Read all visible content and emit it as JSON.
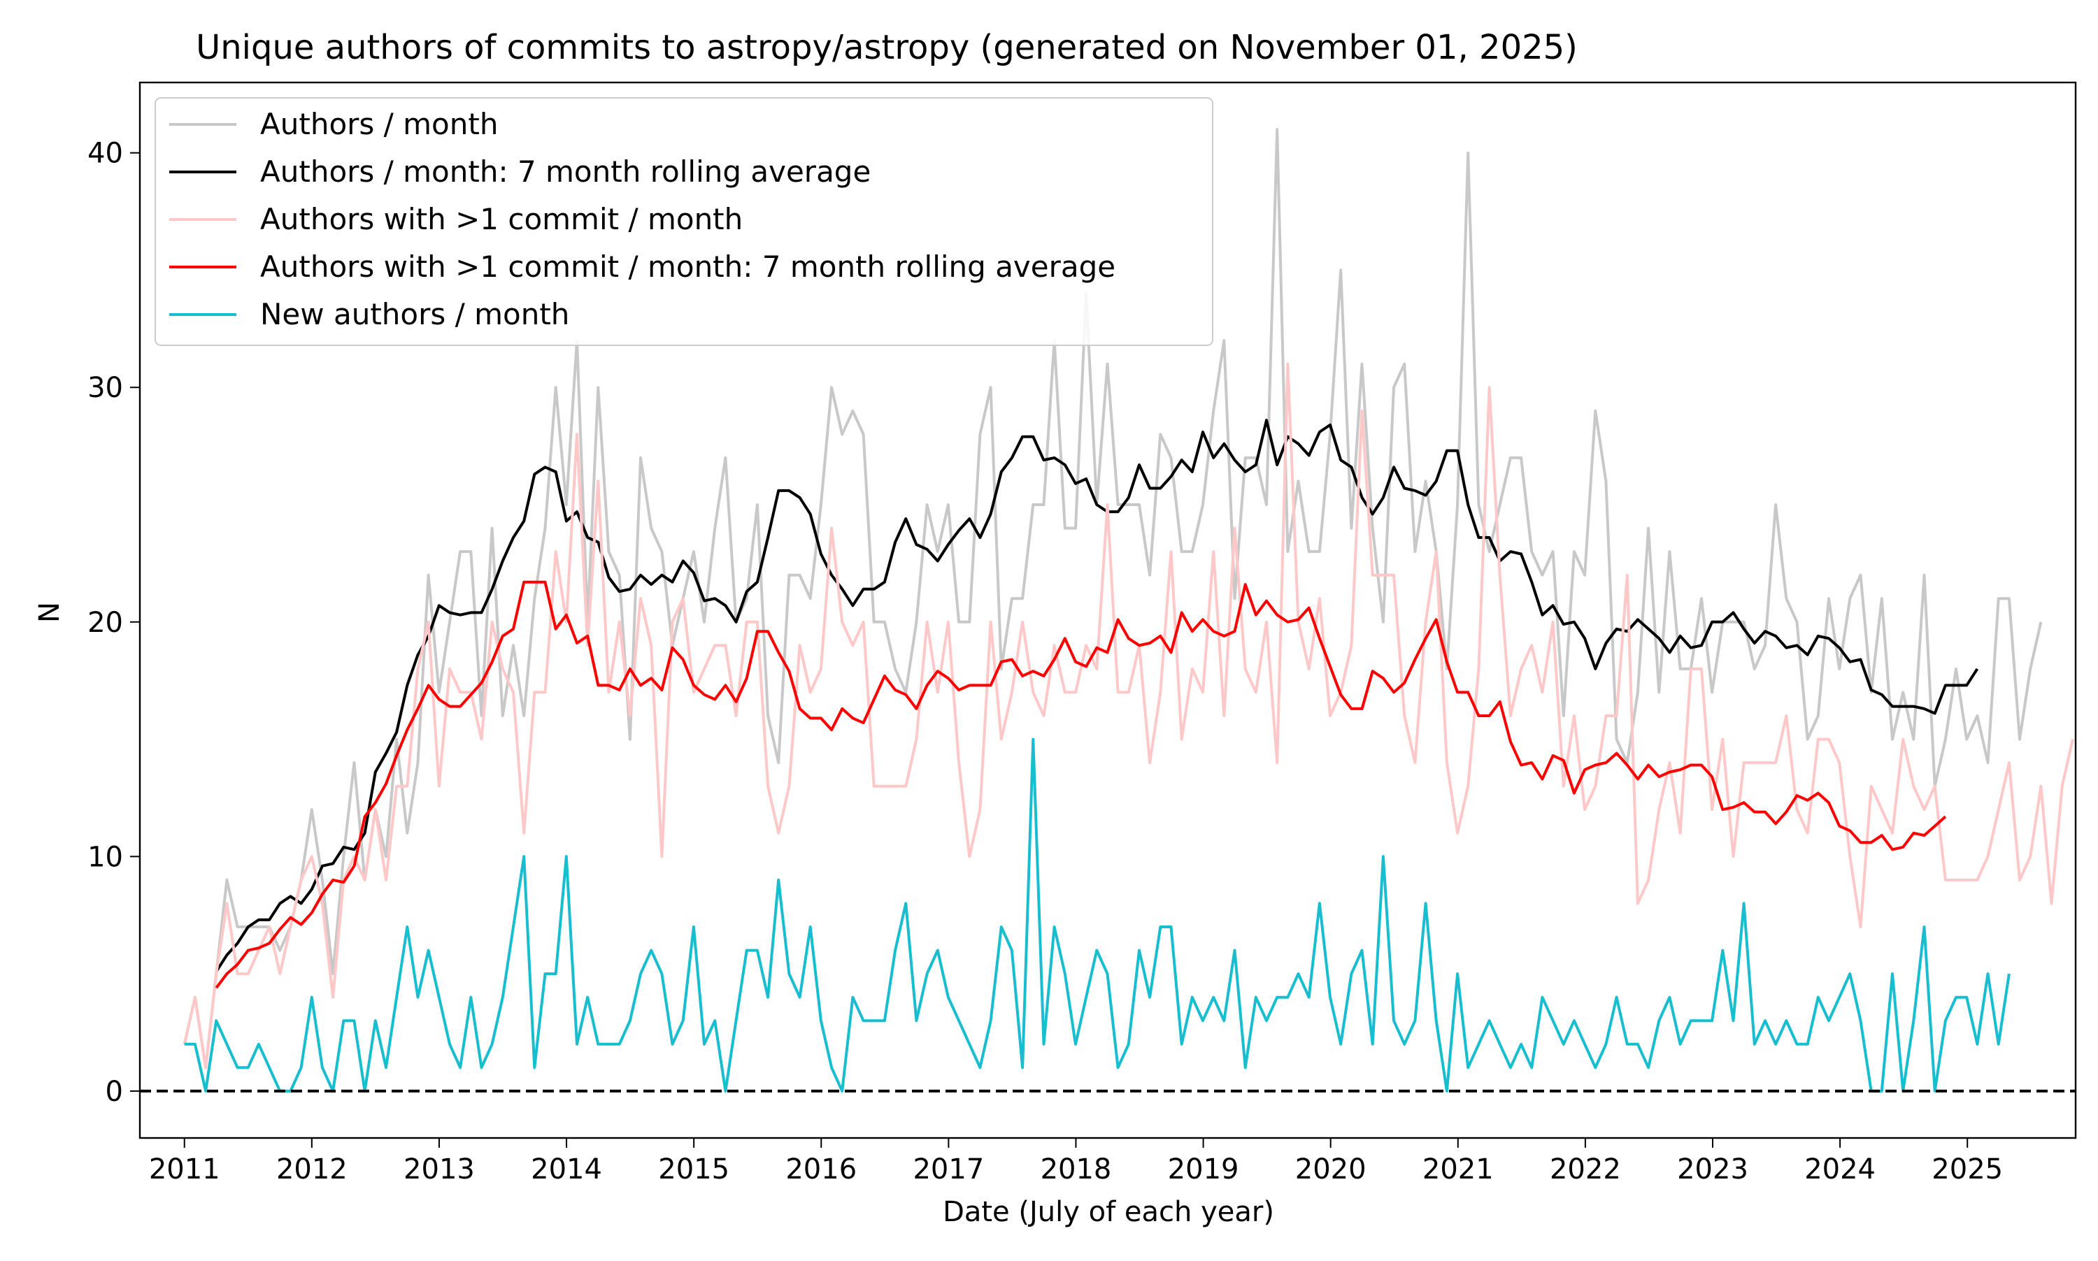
{
  "chart_data": {
    "type": "line",
    "title": "Unique authors of commits to astropy/astropy (generated on November 01, 2025)",
    "xlabel": "Date (July of each year)",
    "ylabel": "N",
    "xlim": [
      2010.65,
      2025.85
    ],
    "ylim": [
      -2,
      43
    ],
    "x_tick_labels": [
      "2011",
      "2012",
      "2013",
      "2014",
      "2015",
      "2016",
      "2017",
      "2018",
      "2019",
      "2020",
      "2021",
      "2022",
      "2023",
      "2024",
      "2025"
    ],
    "y_tick_labels": [
      "0",
      "10",
      "20",
      "30",
      "40"
    ],
    "legend_position": "top-left",
    "grid": false,
    "reference_line": {
      "y": 0,
      "style": "dashed",
      "color": "#000000"
    },
    "series": [
      {
        "name": "Authors / month",
        "color": "#c8c8c8",
        "x_start": 2011.0,
        "x_step": 0.0833,
        "values": [
          2,
          4,
          1,
          5,
          9,
          7,
          7,
          7,
          7,
          6,
          7,
          9,
          12,
          9,
          5,
          10,
          14,
          9,
          12,
          10,
          15,
          11,
          14,
          22,
          17,
          20,
          23,
          23,
          16,
          24,
          16,
          19,
          16,
          21,
          24,
          30,
          25,
          32,
          20,
          30,
          23,
          22,
          15,
          27,
          24,
          23,
          19,
          21,
          23,
          20,
          24,
          27,
          20,
          21,
          25,
          16,
          14,
          22,
          22,
          21,
          25,
          30,
          28,
          29,
          28,
          20,
          20,
          18,
          17,
          20,
          25,
          23,
          25,
          20,
          20,
          28,
          30,
          18,
          21,
          21,
          25,
          25,
          32,
          24,
          24,
          34,
          25,
          31,
          25,
          25,
          25,
          22,
          28,
          27,
          23,
          23,
          25,
          29,
          32,
          21,
          27,
          27,
          25,
          41,
          23,
          26,
          23,
          23,
          28,
          35,
          24,
          31,
          24,
          20,
          30,
          31,
          23,
          26,
          23,
          18,
          25,
          40,
          25,
          23,
          25,
          27,
          27,
          23,
          22,
          23,
          16,
          23,
          22,
          29,
          26,
          15,
          14,
          17,
          24,
          17,
          23,
          18,
          18,
          21,
          17,
          20,
          20,
          20,
          18,
          19,
          25,
          21,
          20,
          15,
          16,
          21,
          18,
          21,
          22,
          17,
          21,
          15,
          17,
          15,
          22,
          13,
          15,
          18,
          15,
          16,
          14,
          21,
          21,
          15,
          18,
          20
        ]
      },
      {
        "name": "Authors / month: 7 month rolling average",
        "color": "#000000",
        "x_start": 2011.25,
        "x_step": 0.0833,
        "values": [
          5.1,
          5.8,
          6.3,
          7.0,
          7.3,
          7.3,
          8.0,
          8.3,
          8.0,
          8.6,
          9.6,
          9.7,
          10.4,
          10.3,
          11.0,
          13.6,
          14.4,
          15.3,
          17.3,
          18.6,
          19.4,
          20.7,
          20.4,
          20.3,
          20.4,
          20.4,
          21.4,
          22.6,
          23.6,
          24.3,
          26.3,
          26.6,
          26.4,
          24.3,
          24.7,
          23.6,
          23.4,
          21.9,
          21.3,
          21.4,
          22.0,
          21.6,
          22.0,
          21.7,
          22.6,
          22.1,
          20.9,
          21.0,
          20.7,
          20.0,
          21.3,
          21.7,
          23.6,
          25.6,
          25.6,
          25.3,
          24.6,
          22.9,
          22.0,
          21.4,
          20.7,
          21.4,
          21.4,
          21.7,
          23.4,
          24.4,
          23.3,
          23.1,
          22.6,
          23.3,
          23.9,
          24.4,
          23.6,
          24.6,
          26.4,
          27.0,
          27.9,
          27.9,
          26.9,
          27.0,
          26.7,
          25.9,
          26.1,
          25.0,
          24.7,
          24.7,
          25.3,
          26.7,
          25.7,
          25.7,
          26.2,
          26.9,
          26.4,
          28.1,
          27.0,
          27.6,
          26.9,
          26.4,
          26.7,
          28.6,
          26.7,
          27.9,
          27.6,
          27.1,
          28.1,
          28.4,
          26.9,
          26.6,
          25.3,
          24.6,
          25.3,
          26.6,
          25.7,
          25.6,
          25.4,
          26.0,
          27.3,
          27.3,
          25.0,
          23.6,
          23.6,
          22.6,
          23.0,
          22.9,
          21.7,
          20.3,
          20.7,
          19.9,
          20.0,
          19.3,
          18.0,
          19.1,
          19.7,
          19.6,
          20.1,
          19.7,
          19.3,
          18.7,
          19.4,
          18.9,
          19.0,
          20.0,
          20.0,
          20.4,
          19.7,
          19.1,
          19.6,
          19.4,
          18.9,
          19.0,
          18.6,
          19.4,
          19.3,
          18.9,
          18.3,
          18.4,
          17.1,
          16.9,
          16.4,
          16.4,
          16.4,
          16.3,
          16.1,
          17.3,
          17.3,
          17.3,
          18.0
        ]
      },
      {
        "name": "Authors with >1 commit / month",
        "color": "#ffc8c8",
        "x_start": 2011.0,
        "x_step": 0.0833,
        "values": [
          2,
          4,
          1,
          5,
          8,
          5,
          5,
          6,
          7,
          5,
          7,
          9,
          10,
          8,
          4,
          9,
          10,
          9,
          12,
          9,
          13,
          13,
          18,
          20,
          13,
          18,
          17,
          17,
          15,
          20,
          18,
          17,
          11,
          17,
          17,
          23,
          20,
          28,
          19,
          26,
          17,
          20,
          16,
          21,
          19,
          10,
          20,
          21,
          17,
          18,
          19,
          19,
          16,
          20,
          20,
          13,
          11,
          13,
          19,
          17,
          18,
          24,
          20,
          19,
          20,
          13,
          13,
          13,
          13,
          15,
          20,
          17,
          20,
          14,
          10,
          12,
          20,
          15,
          17,
          20,
          17,
          16,
          19,
          17,
          17,
          19,
          18,
          25,
          17,
          17,
          19,
          14,
          17,
          23,
          15,
          18,
          17,
          23,
          16,
          24,
          18,
          17,
          20,
          14,
          31,
          20,
          18,
          21,
          16,
          17,
          19,
          29,
          22,
          22,
          22,
          16,
          14,
          20,
          23,
          14,
          11,
          13,
          18,
          30,
          22,
          16,
          18,
          19,
          17,
          20,
          13,
          16,
          12,
          13,
          16,
          16,
          22,
          8,
          9,
          12,
          14,
          11,
          18,
          18,
          12,
          15,
          10,
          14,
          14,
          14,
          14,
          16,
          12,
          11,
          15,
          15,
          14,
          10,
          7,
          13,
          12,
          11,
          15,
          13,
          12,
          13,
          9,
          9,
          9,
          9,
          10,
          12,
          14,
          9,
          10,
          13,
          8,
          13,
          15
        ]
      },
      {
        "name": "Authors with >1 commit / month: 7 month rolling average",
        "color": "#ff0000",
        "x_start": 2011.25,
        "x_step": 0.0833,
        "values": [
          4.4,
          5.0,
          5.4,
          6.0,
          6.1,
          6.3,
          6.9,
          7.4,
          7.1,
          7.6,
          8.4,
          9.0,
          8.9,
          9.6,
          11.7,
          12.3,
          13.1,
          14.3,
          15.4,
          16.3,
          17.3,
          16.7,
          16.4,
          16.4,
          16.9,
          17.4,
          18.3,
          19.4,
          19.7,
          21.7,
          21.7,
          21.7,
          19.7,
          20.3,
          19.1,
          19.4,
          17.3,
          17.3,
          17.1,
          18.0,
          17.3,
          17.6,
          17.1,
          18.9,
          18.4,
          17.3,
          16.9,
          16.7,
          17.3,
          16.6,
          17.6,
          19.6,
          19.6,
          18.7,
          17.9,
          16.3,
          15.9,
          15.9,
          15.4,
          16.3,
          15.9,
          15.7,
          16.7,
          17.7,
          17.1,
          16.9,
          16.3,
          17.3,
          17.9,
          17.6,
          17.1,
          17.3,
          17.3,
          17.3,
          18.3,
          18.4,
          17.7,
          17.9,
          17.7,
          18.4,
          19.3,
          18.3,
          18.1,
          18.9,
          18.7,
          20.1,
          19.3,
          19.0,
          19.1,
          19.4,
          18.7,
          20.4,
          19.6,
          20.1,
          19.6,
          19.4,
          19.6,
          21.6,
          20.3,
          20.9,
          20.3,
          20.0,
          20.1,
          20.6,
          19.3,
          18.1,
          16.9,
          16.3,
          16.3,
          17.9,
          17.6,
          17.0,
          17.4,
          18.4,
          19.3,
          20.1,
          18.3,
          17.0,
          17.0,
          16.0,
          16.0,
          16.6,
          14.9,
          13.9,
          14.0,
          13.3,
          14.3,
          14.1,
          12.7,
          13.7,
          13.9,
          14.0,
          14.4,
          13.9,
          13.3,
          13.9,
          13.4,
          13.6,
          13.7,
          13.9,
          13.9,
          13.4,
          12.0,
          12.1,
          12.3,
          11.9,
          11.9,
          11.4,
          11.9,
          12.6,
          12.4,
          12.7,
          12.3,
          11.3,
          11.1,
          10.6,
          10.6,
          10.9,
          10.3,
          10.4,
          11.0,
          10.9,
          11.3,
          11.7
        ]
      },
      {
        "name": "New authors / month",
        "color": "#17becf",
        "x_start": 2011.0,
        "x_step": 0.0833,
        "values": [
          2,
          2,
          0,
          3,
          2,
          1,
          1,
          2,
          1,
          0,
          0,
          1,
          4,
          1,
          0,
          3,
          3,
          0,
          3,
          1,
          4,
          7,
          4,
          6,
          4,
          2,
          1,
          4,
          1,
          2,
          4,
          7,
          10,
          1,
          5,
          5,
          10,
          2,
          4,
          2,
          2,
          2,
          3,
          5,
          6,
          5,
          2,
          3,
          7,
          2,
          3,
          0,
          3,
          6,
          6,
          4,
          9,
          5,
          4,
          7,
          3,
          1,
          0,
          4,
          3,
          3,
          3,
          6,
          8,
          3,
          5,
          6,
          4,
          3,
          2,
          1,
          3,
          7,
          6,
          1,
          15,
          2,
          7,
          5,
          2,
          4,
          6,
          5,
          1,
          2,
          6,
          4,
          7,
          7,
          2,
          4,
          3,
          4,
          3,
          6,
          1,
          4,
          3,
          4,
          4,
          5,
          4,
          8,
          4,
          2,
          5,
          6,
          2,
          10,
          3,
          2,
          3,
          8,
          3,
          0,
          5,
          1,
          2,
          3,
          2,
          1,
          2,
          1,
          4,
          3,
          2,
          3,
          2,
          1,
          2,
          4,
          2,
          2,
          1,
          3,
          4,
          2,
          3,
          3,
          3,
          6,
          3,
          8,
          2,
          3,
          2,
          3,
          2,
          2,
          4,
          3,
          4,
          5,
          3,
          0,
          0,
          5,
          0,
          3,
          7,
          0,
          3,
          4,
          4,
          2,
          5,
          2,
          5
        ]
      }
    ]
  }
}
